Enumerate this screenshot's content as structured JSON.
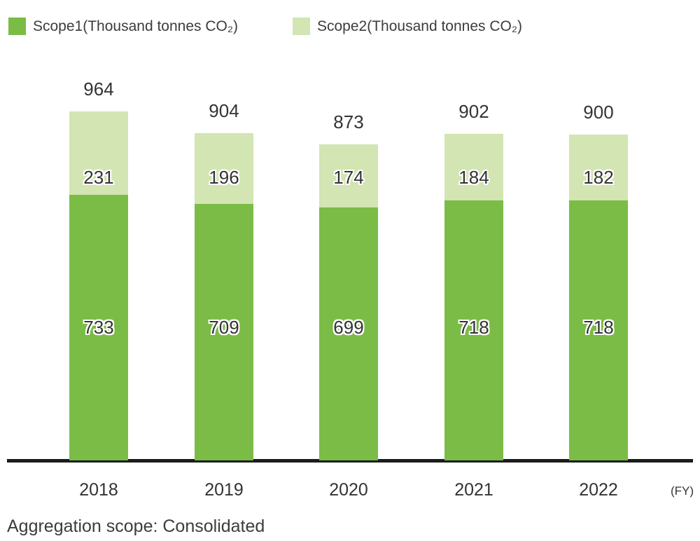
{
  "chart_data": {
    "type": "bar",
    "stacked": true,
    "title": "",
    "categories": [
      "2018",
      "2019",
      "2020",
      "2021",
      "2022"
    ],
    "series": [
      {
        "name": "Scope1(Thousand tonnes CO₂)",
        "color": "#7ABC45",
        "values": [
          733,
          709,
          699,
          718,
          718
        ]
      },
      {
        "name": "Scope2(Thousand tonnes CO₂)",
        "color": "#D2E5B2",
        "values": [
          231,
          196,
          174,
          184,
          182
        ]
      }
    ],
    "totals": [
      964,
      904,
      873,
      902,
      900
    ],
    "x_axis_unit": "(FY)",
    "ylim": [
      0,
      1000
    ],
    "grid": false,
    "legend_position": "top",
    "axis_color": "#1c1c1c",
    "footnote": "Aggregation scope: Consolidated"
  }
}
